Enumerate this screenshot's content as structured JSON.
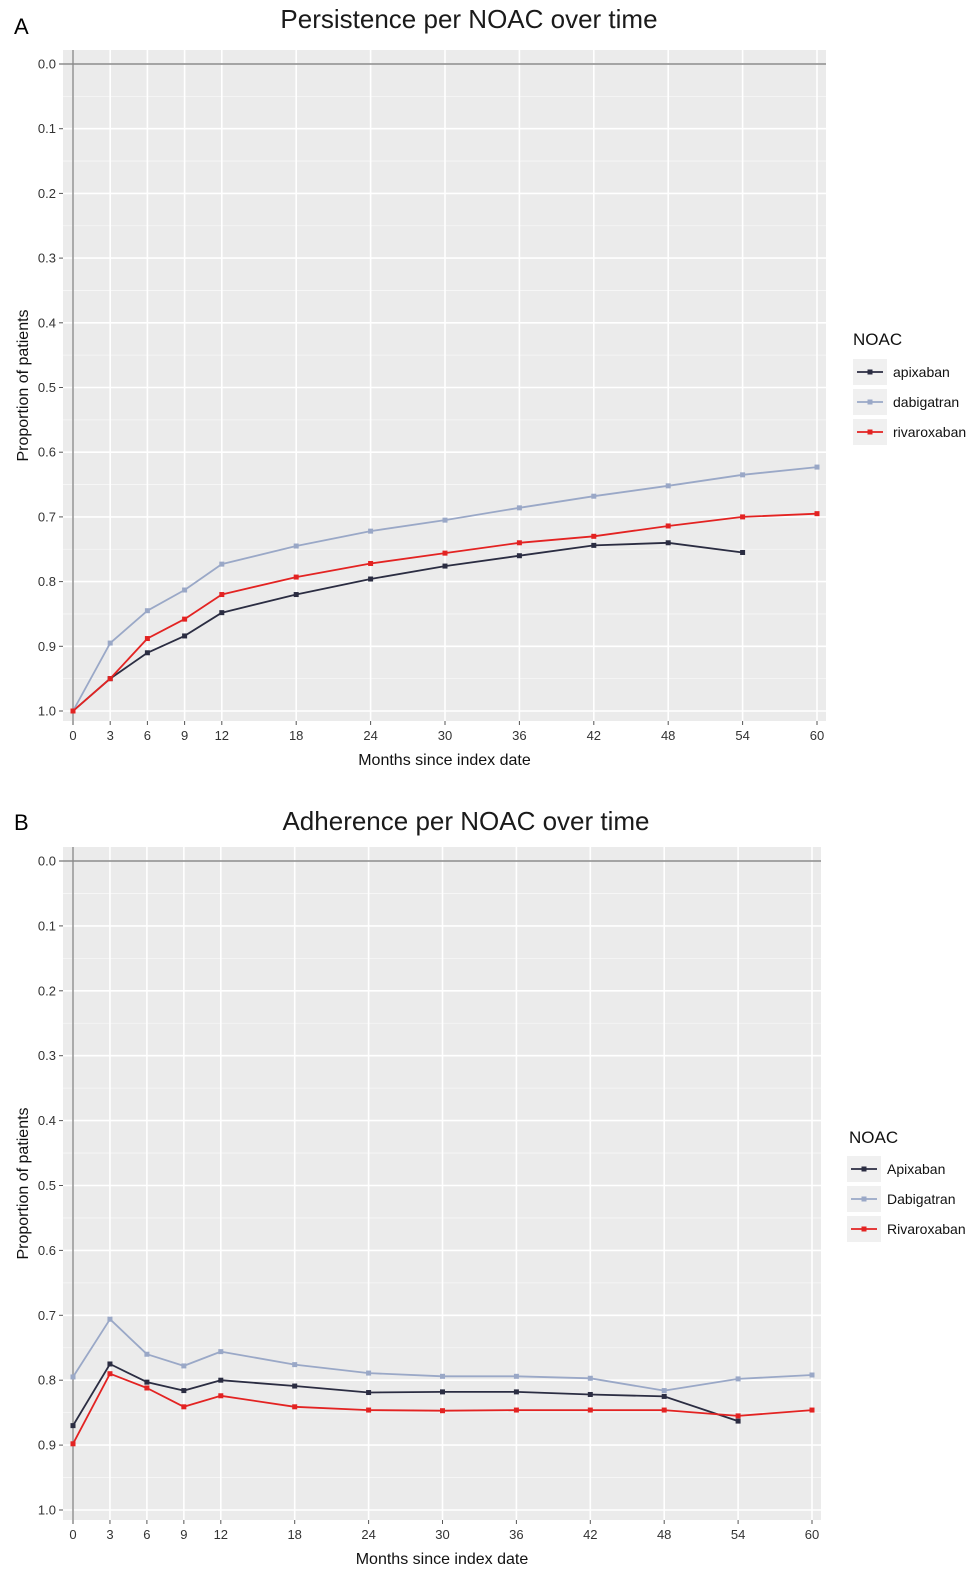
{
  "chart_data": [
    {
      "type": "line",
      "panel": "A",
      "title": "Persistence per NOAC over time",
      "xlabel": "Months since index date",
      "ylabel": "Proportion of patients",
      "x_ticks": [
        0,
        3,
        6,
        9,
        12,
        18,
        24,
        30,
        36,
        42,
        48,
        54,
        60
      ],
      "y_ticks": [
        "0.0",
        "0.1",
        "0.2",
        "0.3",
        "0.4",
        "0.5",
        "0.6",
        "0.7",
        "0.8",
        "0.9",
        "1.0"
      ],
      "xlim": [
        0,
        60
      ],
      "ylim": [
        0,
        1
      ],
      "grid": true,
      "legend_title": "NOAC",
      "legend_position": "right",
      "series": [
        {
          "name": "apixaban",
          "color": "#2b2d42",
          "x": [
            0,
            3,
            6,
            9,
            12,
            18,
            24,
            30,
            36,
            42,
            48,
            54
          ],
          "y": [
            1.0,
            0.95,
            0.91,
            0.884,
            0.848,
            0.82,
            0.796,
            0.776,
            0.76,
            0.744,
            0.74,
            0.755
          ]
        },
        {
          "name": "dabigatran",
          "color": "#9aa8c7",
          "x": [
            0,
            3,
            6,
            9,
            12,
            18,
            24,
            30,
            36,
            42,
            48,
            54,
            60
          ],
          "y": [
            1.0,
            0.895,
            0.845,
            0.813,
            0.773,
            0.745,
            0.722,
            0.705,
            0.686,
            0.668,
            0.652,
            0.635,
            0.623
          ]
        },
        {
          "name": "rivaroxaban",
          "color": "#e32322",
          "x": [
            0,
            3,
            6,
            9,
            12,
            18,
            24,
            30,
            36,
            42,
            48,
            54,
            60
          ],
          "y": [
            1.0,
            0.95,
            0.888,
            0.858,
            0.82,
            0.793,
            0.772,
            0.756,
            0.74,
            0.73,
            0.714,
            0.7,
            0.695
          ]
        }
      ]
    },
    {
      "type": "line",
      "panel": "B",
      "title": "Adherence per NOAC over time",
      "xlabel": "Months since index date",
      "ylabel": "Proportion of patients",
      "x_ticks": [
        0,
        3,
        6,
        9,
        12,
        18,
        24,
        30,
        36,
        42,
        48,
        54,
        60
      ],
      "y_ticks": [
        "0.0",
        "0.1",
        "0.2",
        "0.3",
        "0.4",
        "0.5",
        "0.6",
        "0.7",
        "0.8",
        "0.9",
        "1.0"
      ],
      "xlim": [
        0,
        60
      ],
      "ylim": [
        0,
        1
      ],
      "grid": true,
      "legend_title": "NOAC",
      "legend_position": "right",
      "series": [
        {
          "name": "Apixaban",
          "color": "#2b2d42",
          "x": [
            0,
            3,
            6,
            9,
            12,
            18,
            24,
            30,
            36,
            42,
            48,
            54
          ],
          "y": [
            0.87,
            0.775,
            0.803,
            0.816,
            0.8,
            0.809,
            0.819,
            0.818,
            0.818,
            0.822,
            0.825,
            0.863
          ]
        },
        {
          "name": "Dabigatran",
          "color": "#9aa8c7",
          "x": [
            0,
            3,
            6,
            9,
            12,
            18,
            24,
            30,
            36,
            42,
            48,
            54,
            60
          ],
          "y": [
            0.795,
            0.706,
            0.76,
            0.778,
            0.756,
            0.776,
            0.789,
            0.794,
            0.794,
            0.797,
            0.816,
            0.798,
            0.792
          ]
        },
        {
          "name": "Rivaroxaban",
          "color": "#e32322",
          "x": [
            0,
            3,
            6,
            9,
            12,
            18,
            24,
            30,
            36,
            42,
            48,
            54,
            60
          ],
          "y": [
            0.898,
            0.79,
            0.812,
            0.841,
            0.824,
            0.841,
            0.846,
            0.847,
            0.846,
            0.846,
            0.846,
            0.855,
            0.846
          ]
        }
      ]
    }
  ]
}
